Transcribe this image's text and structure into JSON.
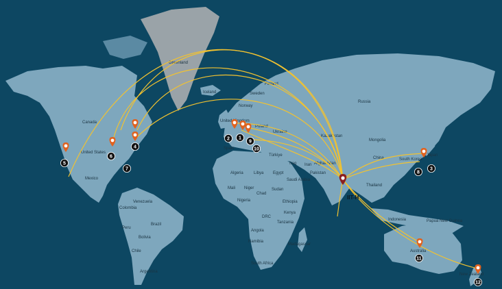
{
  "colors": {
    "ocean": "#0d4762",
    "land": "#7ea7bd",
    "land_dark": "#5b8aa3",
    "greenland": "#9aa3a8",
    "route": "#f2c230",
    "pin": "#e0621f",
    "hub_pin": "#8a1f1f",
    "badge": "#111111"
  },
  "hub": {
    "label": "IIT-H",
    "icon": "map-pin-icon"
  },
  "sites": [
    {
      "number": "1"
    },
    {
      "number": "2"
    },
    {
      "number": "3"
    },
    {
      "number": "4"
    },
    {
      "number": "5"
    },
    {
      "number": "6"
    },
    {
      "number": "7"
    },
    {
      "number": "8"
    },
    {
      "number": "9"
    },
    {
      "number": "10"
    },
    {
      "number": "11"
    },
    {
      "number": "12"
    }
  ],
  "region_labels": [
    "Greenland",
    "Iceland",
    "Finland",
    "Sweden",
    "Norway",
    "Russia",
    "Canada",
    "United States",
    "Mexico",
    "Venezuela",
    "Colombia",
    "Peru",
    "Brazil",
    "Bolivia",
    "Chile",
    "Argentina",
    "United Kingdom",
    "Spain",
    "Poland",
    "Ukraine",
    "Kazakhstan",
    "Mongolia",
    "China",
    "Japan",
    "South Korea",
    "Afghanistan",
    "Pakistan",
    "Iran",
    "Iraq",
    "Türkiye",
    "Algeria",
    "Libya",
    "Egypt",
    "Saudi Arabia",
    "Mali",
    "Niger",
    "Chad",
    "Sudan",
    "Nigeria",
    "Ethiopia",
    "DRC",
    "Kenya",
    "Tanzania",
    "Angola",
    "Namibia",
    "Madagascar",
    "South Africa",
    "Thailand",
    "Indonesia",
    "Papua New Guinea",
    "Australia",
    "New Zealand"
  ]
}
